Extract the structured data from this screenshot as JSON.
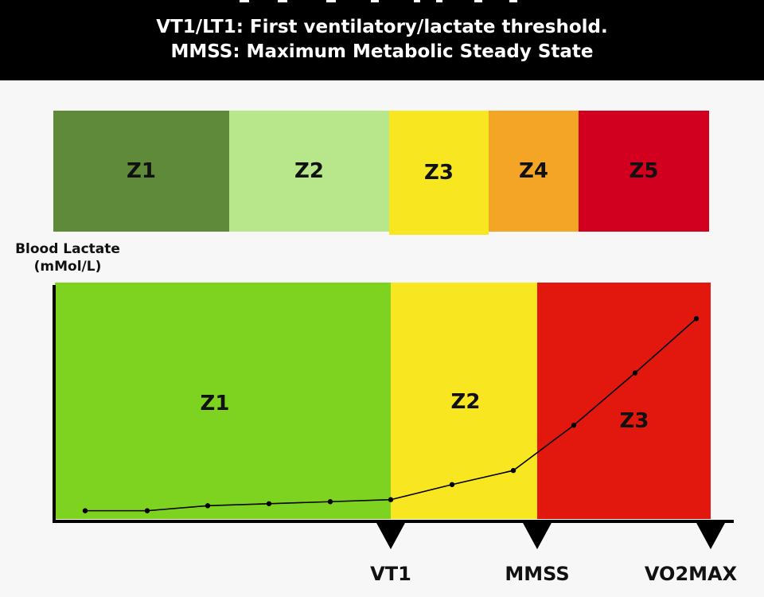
{
  "header": {
    "line1": "VT1/LT1: First ventilatory/lactate threshold.",
    "line2": "MMSS: Maximum Metabolic Steady State"
  },
  "five_zone_bar": [
    {
      "label": "Z1",
      "color": "#5e8a3a"
    },
    {
      "label": "Z2",
      "color": "#b8e68a"
    },
    {
      "label": "Z3",
      "color": "#f7e620"
    },
    {
      "label": "Z4",
      "color": "#f4a526"
    },
    {
      "label": "Z5",
      "color": "#d2001e"
    }
  ],
  "chart_data": {
    "type": "line",
    "ylabel_lines": [
      "Blood Lactate",
      "(mMol/L)"
    ],
    "zones": [
      {
        "label": "Z1",
        "color": "#7ed321"
      },
      {
        "label": "Z2",
        "color": "#f7e620"
      },
      {
        "label": "Z3",
        "color": "#e2180f"
      }
    ],
    "markers": [
      "VT1",
      "MMSS",
      "VO2MAX"
    ],
    "series": [
      {
        "values": [
          0.9,
          0.9,
          1.4,
          1.6,
          1.8,
          2.0,
          3.5,
          4.9,
          9.4,
          14.6,
          20.0
        ]
      }
    ],
    "ylim": [
      0,
      22
    ]
  }
}
